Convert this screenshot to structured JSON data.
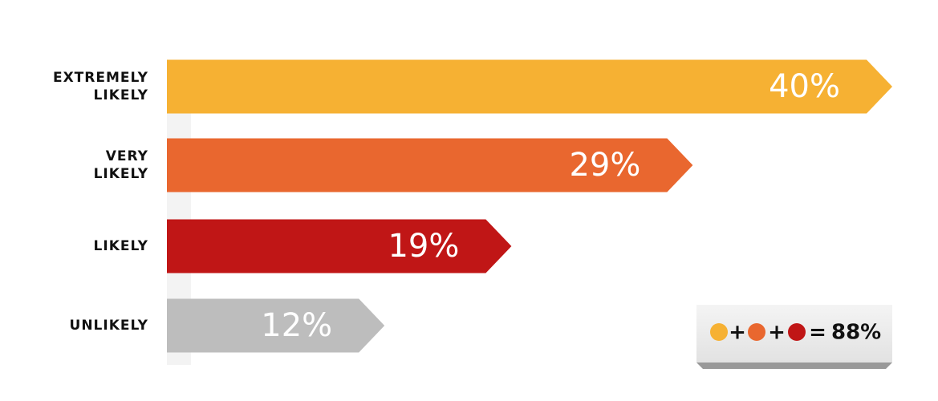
{
  "chart_data": {
    "type": "arrow-bar",
    "categories": [
      "EXTREMELY LIKELY",
      "VERY LIKELY",
      "LIKELY",
      "UNLIKELY"
    ],
    "values": [
      40,
      29,
      19,
      12
    ],
    "value_labels": [
      "40%",
      "29%",
      "19%",
      "12%"
    ],
    "colors": [
      "#f6b133",
      "#e9672f",
      "#c01616",
      "#bdbdbd"
    ],
    "summary": {
      "symbols": [
        "+",
        "+",
        "="
      ],
      "total": 88,
      "total_label": "88%"
    }
  }
}
